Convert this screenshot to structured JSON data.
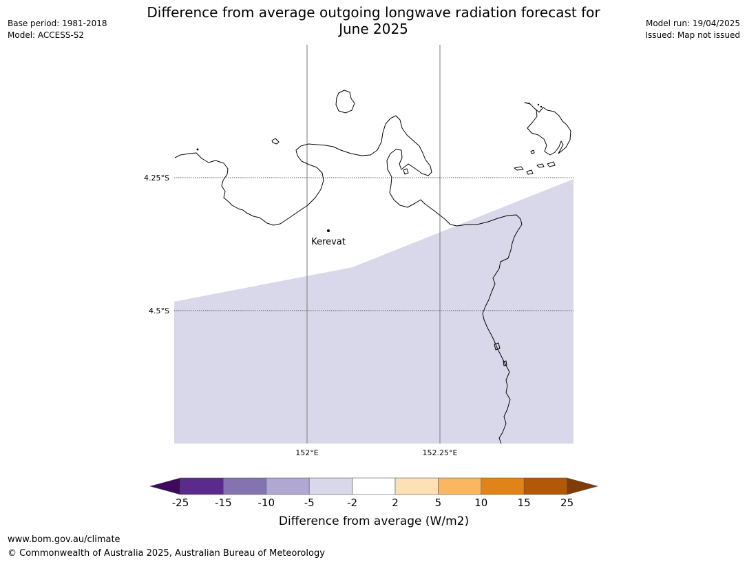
{
  "header": {
    "title_line1": "Difference from average outgoing longwave radiation forecast for",
    "title_line2": "June 2025",
    "base_period": "Base period: 1981-2018",
    "model": "Model: ACCESS-S2",
    "model_run": "Model run: 19/04/2025",
    "issued": "Issued: Map not issued"
  },
  "map": {
    "lat_labels": [
      "4.25°S",
      "4.5°S"
    ],
    "lon_labels": [
      "152°E",
      "152.25°E"
    ],
    "place": "Kerevat",
    "shaded_category": "-5 to -2",
    "shaded_color": "#d8d8ea"
  },
  "legend": {
    "title": "Difference from average (W/m2)",
    "ticks": [
      "-25",
      "-15",
      "-10",
      "-5",
      "-2",
      "2",
      "5",
      "10",
      "15",
      "25"
    ],
    "colors": [
      "#3f0a5e",
      "#5a2a8c",
      "#8473b0",
      "#b0a8d2",
      "#d8d8ea",
      "#ffffff",
      "#fde0b5",
      "#fbb661",
      "#e08418",
      "#b35807",
      "#7f3b08"
    ]
  },
  "footer": {
    "url": "www.bom.gov.au/climate",
    "copyright": "© Commonwealth of Australia 2025, Australian Bureau of Meteorology"
  }
}
